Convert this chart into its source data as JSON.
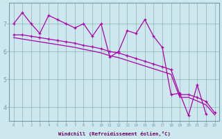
{
  "xlabel": "Windchill (Refroidissement éolien,°C)",
  "background_color": "#cce8ee",
  "line_color": "#aa00aa",
  "grid_color": "#99bbbb",
  "xlim": [
    -0.5,
    23.5
  ],
  "ylim": [
    3.5,
    7.75
  ],
  "xticks": [
    0,
    1,
    2,
    3,
    4,
    5,
    6,
    7,
    8,
    9,
    10,
    11,
    12,
    13,
    14,
    15,
    16,
    17,
    18,
    19,
    20,
    21,
    22,
    23
  ],
  "yticks": [
    4,
    5,
    6,
    7
  ],
  "zigzag_x": [
    0,
    1,
    2,
    3,
    4,
    5,
    6,
    7,
    8,
    9,
    10,
    11,
    12,
    13,
    14,
    15,
    16,
    17,
    18,
    19,
    20,
    21,
    22
  ],
  "zigzag_y": [
    7.0,
    7.4,
    7.0,
    6.65,
    7.3,
    7.15,
    7.0,
    6.85,
    7.0,
    6.55,
    7.0,
    5.8,
    6.0,
    6.75,
    6.65,
    7.15,
    6.55,
    6.15,
    4.45,
    4.5,
    3.7,
    4.8,
    3.75
  ],
  "diag1_x": [
    0,
    1,
    2,
    3,
    4,
    5,
    6,
    7,
    8,
    9,
    10,
    11,
    12,
    13,
    14,
    15,
    16,
    17,
    18,
    19,
    20,
    21,
    22,
    23
  ],
  "diag1_y": [
    6.6,
    6.6,
    6.55,
    6.5,
    6.45,
    6.4,
    6.35,
    6.3,
    6.22,
    6.17,
    6.1,
    6.0,
    5.95,
    5.85,
    5.75,
    5.65,
    5.55,
    5.45,
    5.35,
    4.45,
    4.45,
    4.35,
    4.2,
    3.8
  ],
  "diag2_x": [
    0,
    1,
    2,
    3,
    4,
    5,
    6,
    7,
    8,
    9,
    10,
    11,
    12,
    13,
    14,
    15,
    16,
    17,
    18,
    19,
    20,
    21,
    22,
    23
  ],
  "diag2_y": [
    6.5,
    6.45,
    6.4,
    6.35,
    6.3,
    6.25,
    6.2,
    6.15,
    6.08,
    6.02,
    5.95,
    5.85,
    5.78,
    5.68,
    5.58,
    5.48,
    5.38,
    5.28,
    5.18,
    4.35,
    4.35,
    4.22,
    4.08,
    3.72
  ]
}
